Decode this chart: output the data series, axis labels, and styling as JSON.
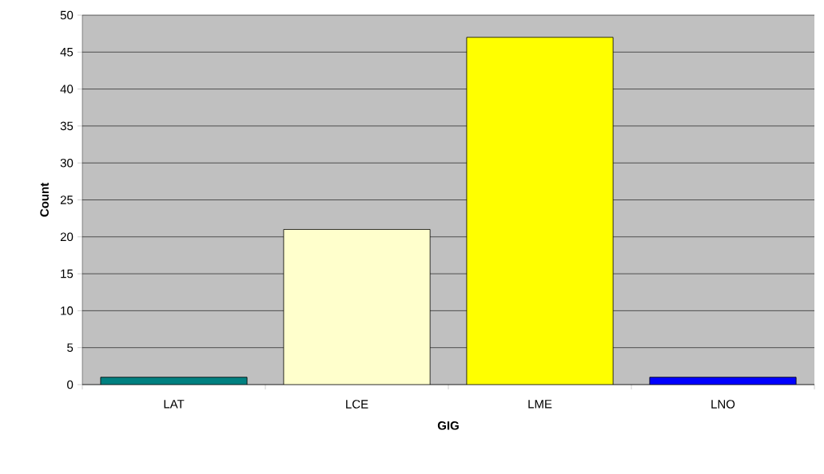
{
  "chart_data": {
    "type": "bar",
    "xlabel": "GIG",
    "ylabel": "Count",
    "categories": [
      "LAT",
      "LCE",
      "LME",
      "LNO"
    ],
    "values": [
      1,
      21,
      47,
      1
    ],
    "colors": [
      "#008080",
      "#ffffcc",
      "#ffff00",
      "#0000ff"
    ],
    "ylim": [
      0,
      50
    ],
    "yticks": [
      0,
      5,
      10,
      15,
      20,
      25,
      30,
      35,
      40,
      45,
      50
    ],
    "grid": "y"
  }
}
